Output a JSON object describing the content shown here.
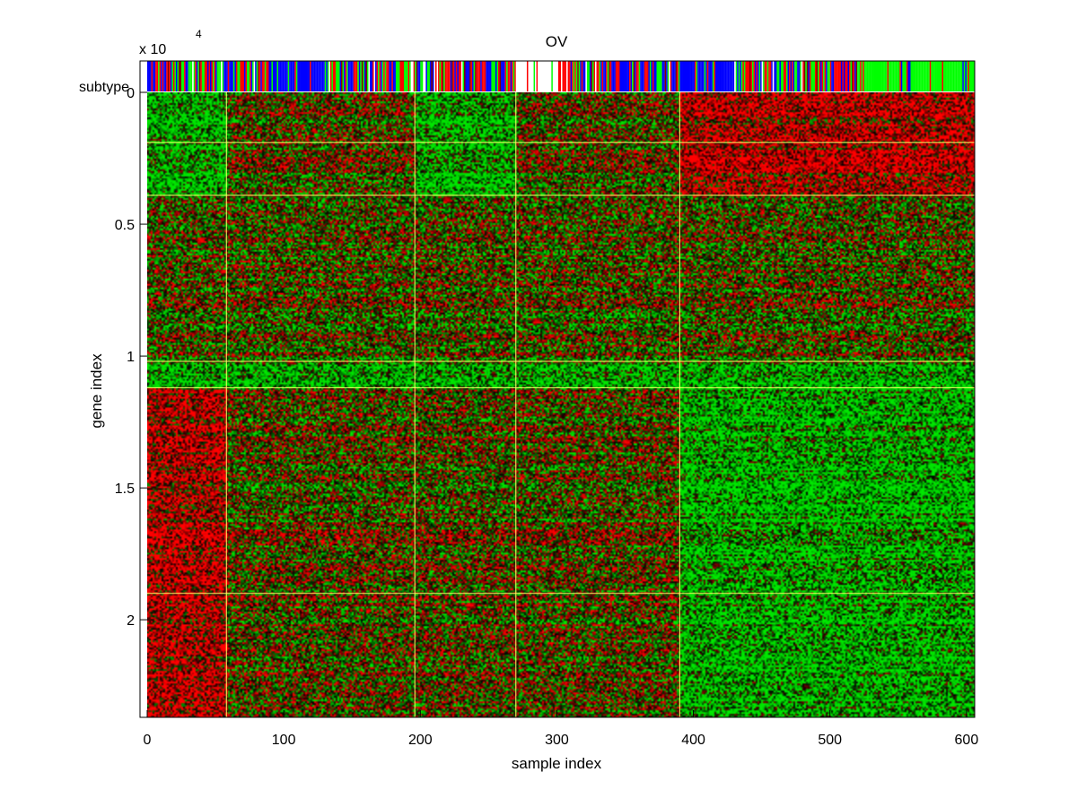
{
  "chart_data": {
    "type": "heatmap",
    "title": "OV",
    "xlabel": "sample index",
    "ylabel": "gene index",
    "y_multiplier_label": "x 10",
    "y_multiplier_exponent": "4",
    "xlim": [
      0,
      606
    ],
    "ylim": [
      0,
      23700
    ],
    "y_axis_reversed": true,
    "x_ticks": [
      0,
      100,
      200,
      300,
      400,
      500,
      600
    ],
    "x_tick_labels": [
      "0",
      "100",
      "200",
      "300",
      "400",
      "500",
      "600"
    ],
    "y_ticks": [
      0,
      5000,
      10000,
      15000,
      20000
    ],
    "y_tick_labels": [
      "0",
      "0.5",
      "1",
      "1.5",
      "2"
    ],
    "subtype_label": "subtype",
    "colormap": {
      "low": "#00ff00",
      "mid": "#000000",
      "high": "#ff0000"
    },
    "subtype_colors": [
      "#0000ff",
      "#00ff00",
      "#ff0000",
      "#ffffff",
      "#800000"
    ],
    "subtype_segments": [
      {
        "from": 0,
        "to": 8,
        "subtype": 0
      },
      {
        "from": 8,
        "to": 58,
        "subtype": "mixed"
      },
      {
        "from": 58,
        "to": 90,
        "subtype": "mixed"
      },
      {
        "from": 90,
        "to": 130,
        "subtype": 0
      },
      {
        "from": 130,
        "to": 196,
        "subtype": "mixed"
      },
      {
        "from": 196,
        "to": 270,
        "subtype": "mixed"
      },
      {
        "from": 270,
        "to": 300,
        "subtype": 3
      },
      {
        "from": 300,
        "to": 390,
        "subtype": "mixed"
      },
      {
        "from": 390,
        "to": 430,
        "subtype": 0
      },
      {
        "from": 430,
        "to": 520,
        "subtype": "mixed"
      },
      {
        "from": 520,
        "to": 606,
        "subtype": 1
      }
    ],
    "vertical_divider_x": [
      58,
      196,
      270,
      390
    ],
    "horizontal_divider_y": [
      1900,
      3900,
      10200,
      11200,
      19000
    ],
    "block_tendency": [
      {
        "x_from": 0,
        "x_to": 58,
        "y_from": 0,
        "y_to": 3900,
        "bias": "green"
      },
      {
        "x_from": 196,
        "x_to": 270,
        "y_from": 0,
        "y_to": 3900,
        "bias": "green"
      },
      {
        "x_from": 270,
        "x_to": 390,
        "y_from": 0,
        "y_to": 3900,
        "bias": "mixed"
      },
      {
        "x_from": 390,
        "x_to": 606,
        "y_from": 0,
        "y_to": 3900,
        "bias": "red"
      },
      {
        "x_from": 0,
        "x_to": 606,
        "y_from": 10200,
        "y_to": 11200,
        "bias": "green"
      },
      {
        "x_from": 0,
        "x_to": 58,
        "y_from": 11200,
        "y_to": 23700,
        "bias": "red"
      },
      {
        "x_from": 390,
        "x_to": 606,
        "y_from": 11200,
        "y_to": 23700,
        "bias": "green"
      }
    ],
    "grid": false
  }
}
